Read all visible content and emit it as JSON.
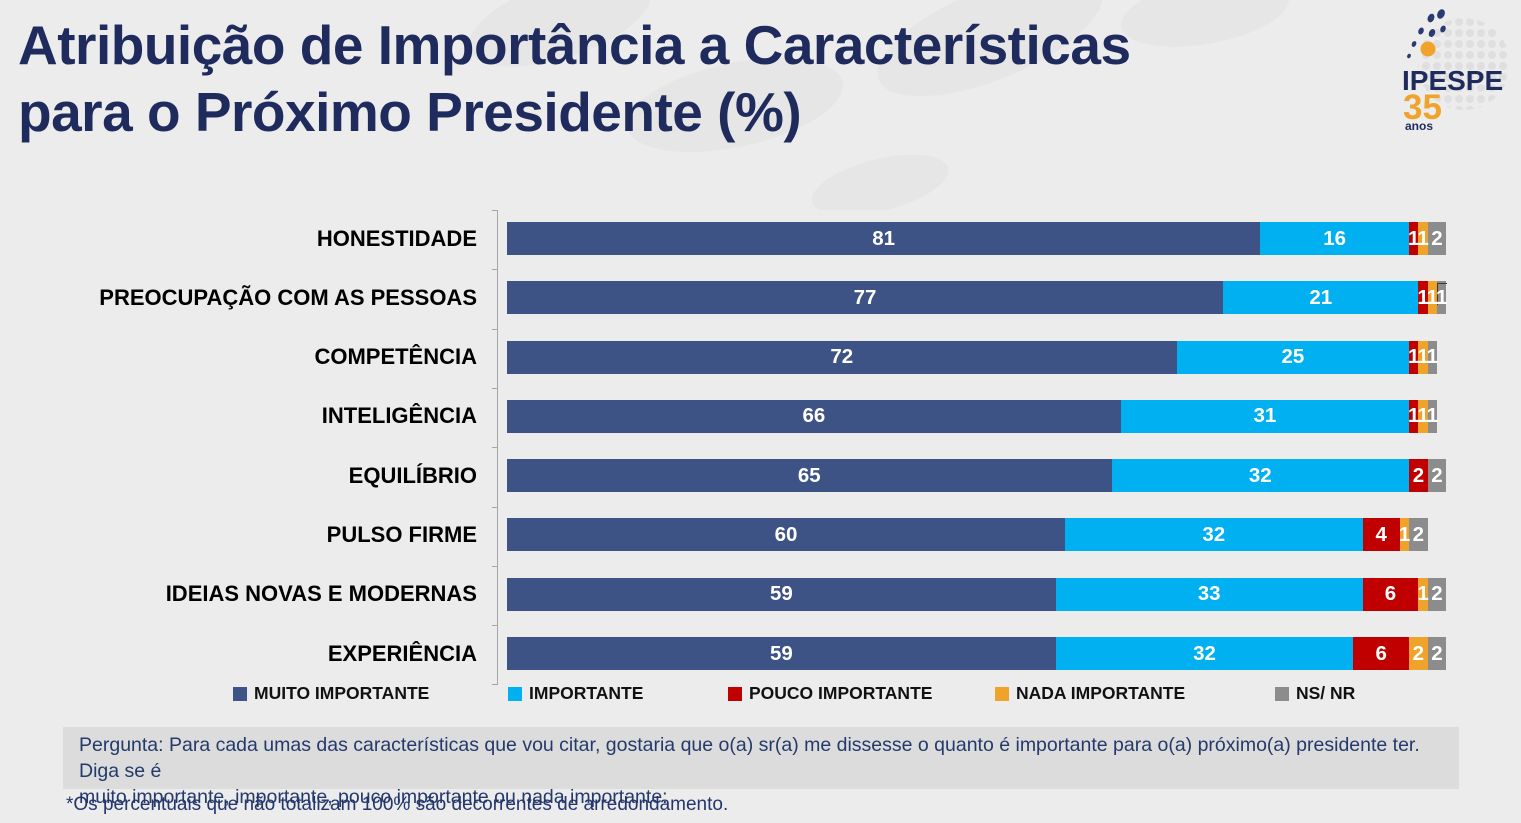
{
  "title": {
    "line1": "Atribuição de Importância a Características",
    "line2": "para o Próximo Presidente (%)"
  },
  "logo": {
    "name": "IPESPE",
    "years": "35",
    "anos": "anos"
  },
  "chart_data": {
    "type": "bar",
    "orientation": "horizontal-stacked",
    "title": "Atribuição de Importância a Características para o Próximo Presidente (%)",
    "xlim": [
      0,
      100
    ],
    "value_labels": "inside-white-bold",
    "legend_position": "bottom",
    "grid": false,
    "categories": [
      "HONESTIDADE",
      "PREOCUPAÇÃO COM AS PESSOAS",
      "COMPETÊNCIA",
      "INTELIGÊNCIA",
      "EQUILÍBRIO",
      "PULSO FIRME",
      "IDEIAS NOVAS E MODERNAS",
      "EXPERIÊNCIA"
    ],
    "series": [
      {
        "name": "MUITO IMPORTANTE",
        "color": "#3D5385",
        "values": [
          81,
          77,
          72,
          66,
          65,
          60,
          59,
          59
        ]
      },
      {
        "name": "IMPORTANTE",
        "color": "#00B0F0",
        "values": [
          16,
          21,
          25,
          31,
          32,
          32,
          33,
          32
        ]
      },
      {
        "name": "POUCO IMPORTANTE",
        "color": "#C00000",
        "values": [
          1,
          1,
          1,
          1,
          2,
          4,
          6,
          6
        ]
      },
      {
        "name": "NADA IMPORTANTE",
        "color": "#F0A32B",
        "values": [
          1,
          1,
          1,
          1,
          0,
          1,
          1,
          2
        ]
      },
      {
        "name": "NS/ NR",
        "color": "#8C8C8C",
        "values": [
          2,
          1,
          1,
          1,
          2,
          2,
          2,
          2
        ]
      }
    ]
  },
  "question": {
    "line1": "Pergunta:  Para cada umas das características que vou citar, gostaria que o(a) sr(a) me dissesse o quanto é importante para o(a) próximo(a) presidente ter. Diga se é",
    "line2": "muito importante, importante, pouco importante ou nada importante:"
  },
  "footnote": "*Os percentuais que não totalizam 100% são decorrentes de arredondamento.",
  "colors": {
    "background": "#ECECEC",
    "title_text": "#1F2B5C",
    "question_box": "#DCDCDC",
    "question_text": "#243A6B",
    "axis": "#A6A6A6",
    "logo_orange": "#F0A32B",
    "logo_navy": "#1F2B5C"
  }
}
